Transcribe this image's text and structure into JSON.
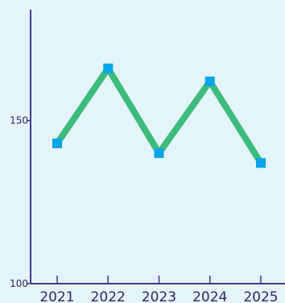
{
  "chart_data": {
    "type": "line",
    "title": "",
    "xlabel": "",
    "ylabel": "",
    "categories": [
      "2021",
      "2022",
      "2023",
      "2024",
      "2025"
    ],
    "series": [
      {
        "values": [
          143,
          166,
          140,
          162,
          137
        ]
      }
    ],
    "ylim": [
      100,
      184
    ],
    "yticks": [
      100,
      150
    ],
    "ytick_labels": [
      "100",
      "150"
    ],
    "grid": false,
    "line_color": "#3dbb7a",
    "marker_color": "#0aa6e8",
    "marker_shape": "square"
  }
}
